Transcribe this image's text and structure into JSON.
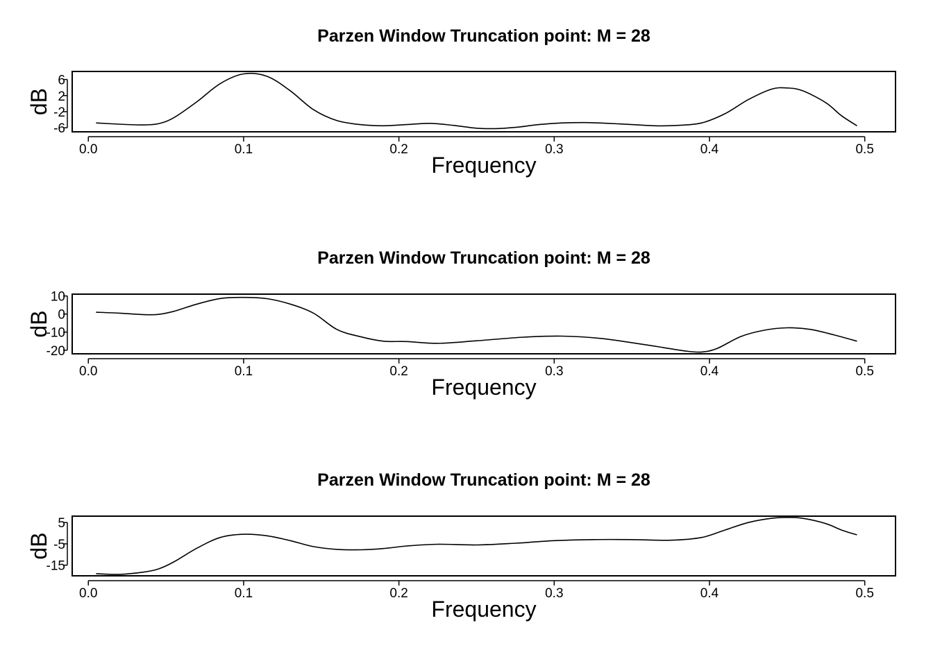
{
  "chart_data": [
    {
      "type": "line",
      "title": "Parzen Window Truncation point: M = 28",
      "xlabel": "Frequency",
      "ylabel": "dB",
      "xlim": [
        -0.0104,
        0.5198
      ],
      "ylim": [
        -7.0,
        8.0
      ],
      "xticks": [
        "0.0",
        "0.1",
        "0.2",
        "0.3",
        "0.4",
        "0.5"
      ],
      "yticks": [
        "6",
        "2",
        "-2",
        "-6"
      ],
      "grid": false,
      "series": [
        {
          "x": [
            0.005,
            0.02,
            0.035,
            0.045,
            0.055,
            0.07,
            0.085,
            0.1,
            0.115,
            0.13,
            0.145,
            0.16,
            0.175,
            0.19,
            0.205,
            0.22,
            0.235,
            0.25,
            0.262,
            0.275,
            0.29,
            0.305,
            0.32,
            0.335,
            0.35,
            0.365,
            0.38,
            0.395,
            0.41,
            0.425,
            0.44,
            0.45,
            0.46,
            0.475,
            0.485,
            0.495
          ],
          "values": [
            -4.8,
            -5.1,
            -5.3,
            -5.0,
            -3.5,
            0.5,
            5.0,
            7.4,
            6.8,
            3.2,
            -1.5,
            -4.2,
            -5.2,
            -5.5,
            -5.2,
            -4.9,
            -5.4,
            -6.1,
            -6.2,
            -5.9,
            -5.2,
            -4.8,
            -4.7,
            -4.9,
            -5.2,
            -5.5,
            -5.4,
            -4.8,
            -2.5,
            1.0,
            3.6,
            3.9,
            3.2,
            0.2,
            -3.0,
            -5.5
          ]
        }
      ]
    },
    {
      "type": "line",
      "title": "Parzen Window Truncation point: M = 28",
      "xlabel": "Frequency",
      "ylabel": "dB",
      "xlim": [
        -0.0104,
        0.5198
      ],
      "ylim": [
        -22.0,
        11.0
      ],
      "xticks": [
        "0.0",
        "0.1",
        "0.2",
        "0.3",
        "0.4",
        "0.5"
      ],
      "yticks": [
        "10",
        "0",
        "-10",
        "-20"
      ],
      "grid": false,
      "series": [
        {
          "x": [
            0.005,
            0.02,
            0.035,
            0.045,
            0.055,
            0.07,
            0.085,
            0.1,
            0.115,
            0.13,
            0.145,
            0.16,
            0.175,
            0.19,
            0.205,
            0.225,
            0.25,
            0.28,
            0.305,
            0.33,
            0.355,
            0.37,
            0.385,
            0.395,
            0.405,
            0.42,
            0.435,
            0.45,
            0.465,
            0.48,
            0.495
          ],
          "values": [
            1.0,
            0.5,
            -0.3,
            -0.2,
            1.5,
            5.5,
            8.6,
            9.2,
            8.5,
            5.5,
            0.5,
            -8.5,
            -12.5,
            -15.0,
            -15.2,
            -16.2,
            -14.8,
            -12.8,
            -12.2,
            -13.5,
            -16.5,
            -18.5,
            -20.5,
            -21.0,
            -19.0,
            -12.5,
            -9.0,
            -7.6,
            -8.5,
            -11.5,
            -15.0
          ]
        }
      ]
    },
    {
      "type": "line",
      "title": "Parzen Window Truncation point: M = 28",
      "xlabel": "Frequency",
      "ylabel": "dB",
      "xlim": [
        -0.0104,
        0.5198
      ],
      "ylim": [
        -20.0,
        8.0
      ],
      "xticks": [
        "0.0",
        "0.1",
        "0.2",
        "0.3",
        "0.4",
        "0.5"
      ],
      "yticks": [
        "5",
        "-5",
        "-15"
      ],
      "grid": false,
      "series": [
        {
          "x": [
            0.005,
            0.02,
            0.035,
            0.045,
            0.055,
            0.07,
            0.085,
            0.1,
            0.115,
            0.13,
            0.145,
            0.16,
            0.175,
            0.19,
            0.205,
            0.225,
            0.25,
            0.275,
            0.3,
            0.325,
            0.35,
            0.375,
            0.395,
            0.41,
            0.425,
            0.44,
            0.45,
            0.46,
            0.475,
            0.485,
            0.495
          ],
          "values": [
            -19.0,
            -19.3,
            -18.3,
            -16.8,
            -13.5,
            -7.0,
            -2.0,
            -0.5,
            -1.2,
            -3.5,
            -6.3,
            -7.6,
            -7.8,
            -7.2,
            -6.0,
            -5.2,
            -5.5,
            -4.7,
            -3.5,
            -3.0,
            -3.0,
            -3.3,
            -2.0,
            1.5,
            5.0,
            7.0,
            7.4,
            7.0,
            4.5,
            1.5,
            -0.8
          ]
        }
      ]
    }
  ]
}
